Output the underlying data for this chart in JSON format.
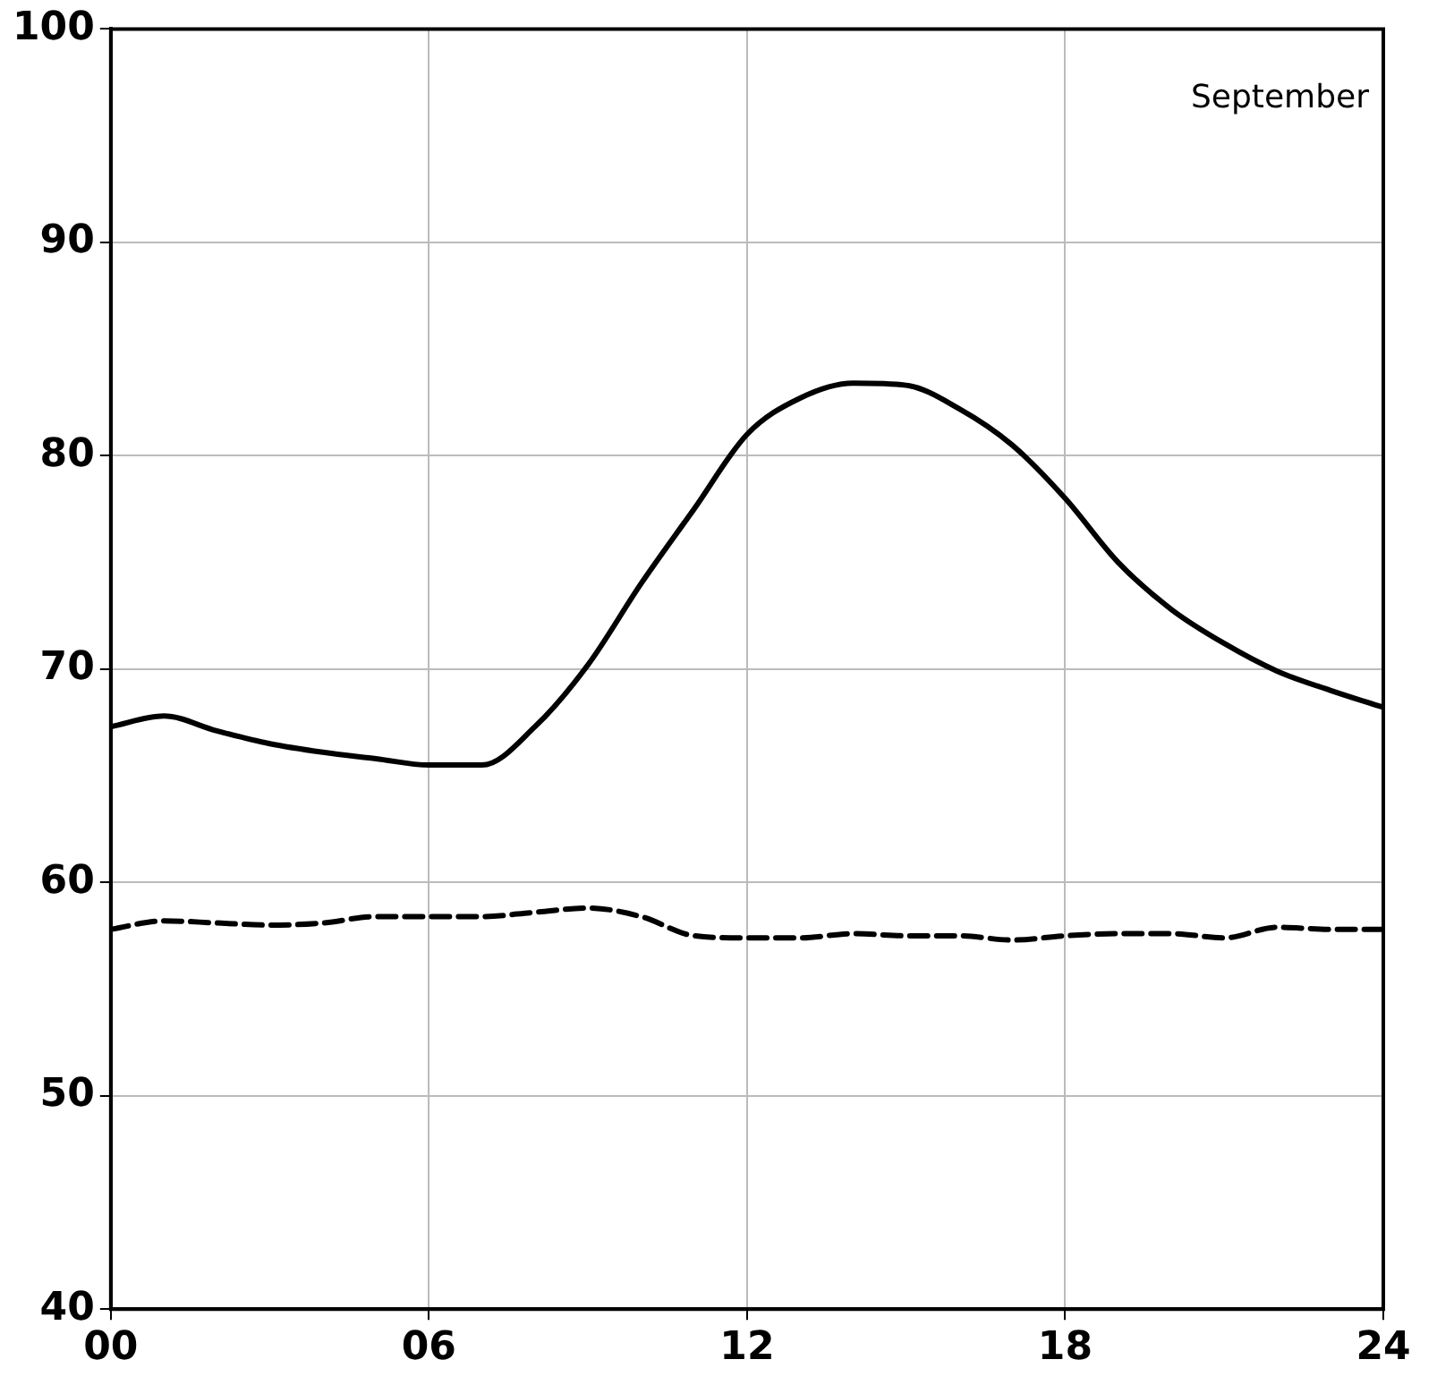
{
  "chart_data": {
    "type": "line",
    "annotations": [
      "September"
    ],
    "x": [
      0,
      1,
      2,
      3,
      4,
      5,
      6,
      7,
      8,
      9,
      10,
      11,
      12,
      13,
      14,
      15,
      16,
      17,
      18,
      19,
      20,
      21,
      22,
      23,
      24
    ],
    "xlim": [
      0,
      24
    ],
    "xticks": [
      {
        "value": 0,
        "label": "00"
      },
      {
        "value": 6,
        "label": "06"
      },
      12,
      18,
      24
    ],
    "ylim": [
      40,
      100
    ],
    "yticks": [
      40,
      50,
      60,
      70,
      80,
      90,
      100
    ],
    "grid": true,
    "marker": "none",
    "series": [
      {
        "color": "#000000",
        "line_style": "solid",
        "values": [
          67.3,
          67.8,
          67.1,
          66.5,
          66.1,
          65.8,
          65.5,
          65.5,
          67.3,
          70.2,
          74,
          77.5,
          81,
          82.7,
          83.4,
          83.3,
          82.2,
          80.5,
          78,
          75,
          72.8,
          71.2,
          69.9,
          69,
          68.2
        ]
      },
      {
        "color": "#000000",
        "line_style": "dashed",
        "values": [
          57.8,
          58.2,
          58.1,
          58,
          58.1,
          58.4,
          58.4,
          58.4,
          58.6,
          58.8,
          58.4,
          57.5,
          57.4,
          57.4,
          57.6,
          57.5,
          57.5,
          57.3,
          57.5,
          57.6,
          57.6,
          57.4,
          57.9,
          57.8,
          57.8
        ]
      }
    ]
  }
}
